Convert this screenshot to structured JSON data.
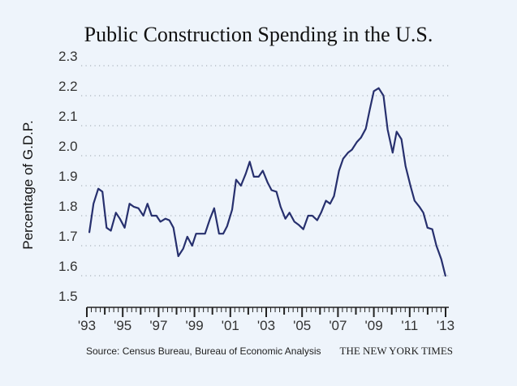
{
  "chart_data": {
    "type": "line",
    "title": "Public Construction Spending in the U.S.",
    "xlabel": "",
    "ylabel": "Percentage of G.D.P.",
    "ylim": [
      1.5,
      2.3
    ],
    "xlim": [
      1993,
      2013
    ],
    "yticks": [
      "1.5",
      "1.6",
      "1.7",
      "1.8",
      "1.9",
      "2.0",
      "2.1",
      "2.2",
      "2.3"
    ],
    "xticks": [
      {
        "year": 1993,
        "label": "'93"
      },
      {
        "year": 1995,
        "label": "'95"
      },
      {
        "year": 1997,
        "label": "'97"
      },
      {
        "year": 1999,
        "label": "'99"
      },
      {
        "year": 2001,
        "label": "'01"
      },
      {
        "year": 2003,
        "label": "'03"
      },
      {
        "year": 2005,
        "label": "'05"
      },
      {
        "year": 2007,
        "label": "'07"
      },
      {
        "year": 2009,
        "label": "'09"
      },
      {
        "year": 2011,
        "label": "'11"
      },
      {
        "year": 2013,
        "label": "'13"
      }
    ],
    "grid": "horizontal-dotted",
    "series": [
      {
        "name": "Public construction spending (% of GDP)",
        "color": "#27306e",
        "points": [
          [
            1993.14,
            1.745
          ],
          [
            1993.37,
            1.84
          ],
          [
            1993.64,
            1.89
          ],
          [
            1993.87,
            1.88
          ],
          [
            1994.1,
            1.76
          ],
          [
            1994.34,
            1.75
          ],
          [
            1994.62,
            1.81
          ],
          [
            1994.84,
            1.79
          ],
          [
            1995.11,
            1.76
          ],
          [
            1995.38,
            1.84
          ],
          [
            1995.61,
            1.83
          ],
          [
            1995.88,
            1.825
          ],
          [
            1996.15,
            1.8
          ],
          [
            1996.38,
            1.84
          ],
          [
            1996.61,
            1.8
          ],
          [
            1996.88,
            1.8
          ],
          [
            1997.1,
            1.78
          ],
          [
            1997.38,
            1.79
          ],
          [
            1997.6,
            1.785
          ],
          [
            1997.83,
            1.76
          ],
          [
            1998.1,
            1.665
          ],
          [
            1998.37,
            1.69
          ],
          [
            1998.6,
            1.73
          ],
          [
            1998.87,
            1.7
          ],
          [
            1999.09,
            1.74
          ],
          [
            1999.37,
            1.74
          ],
          [
            1999.59,
            1.74
          ],
          [
            1999.87,
            1.79
          ],
          [
            2000.1,
            1.825
          ],
          [
            2000.37,
            1.74
          ],
          [
            2000.6,
            1.74
          ],
          [
            2000.82,
            1.765
          ],
          [
            2001.1,
            1.82
          ],
          [
            2001.32,
            1.92
          ],
          [
            2001.59,
            1.9
          ],
          [
            2001.86,
            1.94
          ],
          [
            2002.08,
            1.98
          ],
          [
            2002.31,
            1.93
          ],
          [
            2002.58,
            1.93
          ],
          [
            2002.81,
            1.95
          ],
          [
            2003.08,
            1.91
          ],
          [
            2003.3,
            1.885
          ],
          [
            2003.57,
            1.88
          ],
          [
            2003.8,
            1.83
          ],
          [
            2004.07,
            1.79
          ],
          [
            2004.3,
            1.81
          ],
          [
            2004.57,
            1.78
          ],
          [
            2004.8,
            1.77
          ],
          [
            2005.07,
            1.755
          ],
          [
            2005.34,
            1.8
          ],
          [
            2005.57,
            1.8
          ],
          [
            2005.84,
            1.785
          ],
          [
            2006.06,
            1.81
          ],
          [
            2006.33,
            1.85
          ],
          [
            2006.56,
            1.84
          ],
          [
            2006.78,
            1.865
          ],
          [
            2007.06,
            1.95
          ],
          [
            2007.29,
            1.99
          ],
          [
            2007.56,
            2.01
          ],
          [
            2007.78,
            2.02
          ],
          [
            2008.05,
            2.045
          ],
          [
            2008.28,
            2.06
          ],
          [
            2008.55,
            2.09
          ],
          [
            2008.78,
            2.155
          ],
          [
            2009.0,
            2.215
          ],
          [
            2009.27,
            2.225
          ],
          [
            2009.54,
            2.2
          ],
          [
            2009.77,
            2.087
          ],
          [
            2010.05,
            2.01
          ],
          [
            2010.27,
            2.08
          ],
          [
            2010.54,
            2.055
          ],
          [
            2010.77,
            1.965
          ],
          [
            2011.04,
            1.9
          ],
          [
            2011.27,
            1.85
          ],
          [
            2011.54,
            1.83
          ],
          [
            2011.76,
            1.81
          ],
          [
            2011.99,
            1.76
          ],
          [
            2012.26,
            1.755
          ],
          [
            2012.49,
            1.7
          ],
          [
            2012.76,
            1.655
          ],
          [
            2012.99,
            1.6
          ]
        ]
      }
    ]
  },
  "footer": {
    "source": "Source:  Census Bureau, Bureau of Economic Analysis",
    "credit": "THE NEW YORK TIMES"
  }
}
